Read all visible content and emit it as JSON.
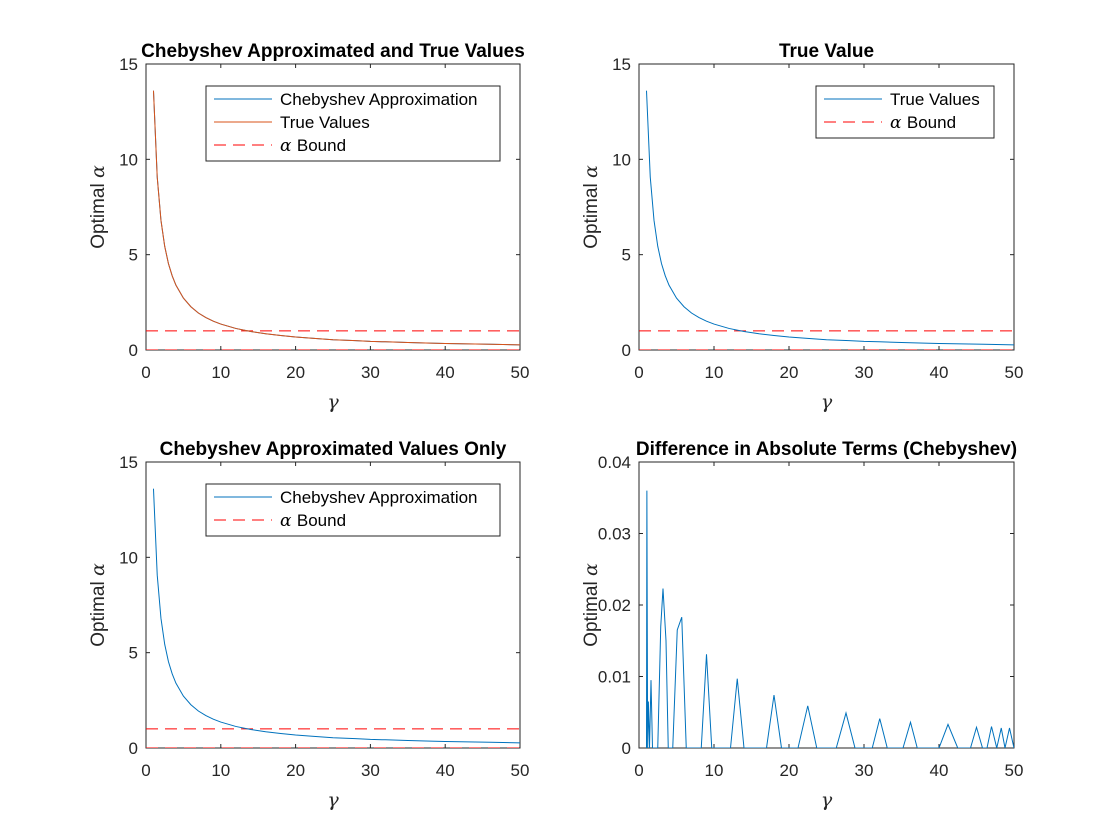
{
  "colors": {
    "blue": "#0072BD",
    "orange": "#D95319",
    "bound": "#FF0000",
    "axis": "#262626"
  },
  "chart_data": [
    {
      "type": "line",
      "title": "Chebyshev Approximated and True Values",
      "xlabel": "γ",
      "ylabel_prefix": "Optimal ",
      "ylabel_symbol": "α",
      "xlim": [
        0,
        50
      ],
      "ylim": [
        0,
        15
      ],
      "xticks": [
        0,
        10,
        20,
        30,
        40,
        50
      ],
      "yticks": [
        0,
        5,
        10,
        15
      ],
      "ytick_labels": [
        "0",
        "5",
        "10",
        "15"
      ],
      "legend_position": "top-right",
      "x": [
        1,
        1.5,
        2,
        2.5,
        3,
        3.5,
        4,
        5,
        6,
        7,
        8,
        9,
        10,
        12,
        14,
        16,
        18,
        20,
        22,
        25,
        28,
        30,
        32,
        35,
        38,
        40,
        43,
        46,
        50
      ],
      "series": [
        {
          "name": "Chebyshev Approximation",
          "style": "solid",
          "color": "#0072BD",
          "values": [
            13.6,
            9.07,
            6.8,
            5.44,
            4.53,
            3.89,
            3.4,
            2.72,
            2.27,
            1.94,
            1.7,
            1.51,
            1.36,
            1.13,
            0.97,
            0.85,
            0.76,
            0.68,
            0.62,
            0.54,
            0.49,
            0.45,
            0.43,
            0.39,
            0.36,
            0.34,
            0.32,
            0.3,
            0.27
          ]
        },
        {
          "name": "True Values",
          "style": "solid",
          "color": "#D95319",
          "values": [
            13.6,
            9.07,
            6.8,
            5.44,
            4.53,
            3.89,
            3.4,
            2.72,
            2.27,
            1.94,
            1.7,
            1.51,
            1.36,
            1.13,
            0.97,
            0.85,
            0.76,
            0.68,
            0.62,
            0.54,
            0.49,
            0.45,
            0.43,
            0.39,
            0.36,
            0.34,
            0.32,
            0.3,
            0.27
          ]
        }
      ],
      "bound": {
        "name": "Bound",
        "symbol": "α",
        "values": [
          0,
          1
        ],
        "color": "#FF0000",
        "style": "dashed"
      }
    },
    {
      "type": "line",
      "title": "True Value",
      "xlabel": "γ",
      "ylabel_prefix": "Optimal ",
      "ylabel_symbol": "α",
      "xlim": [
        0,
        50
      ],
      "ylim": [
        0,
        15
      ],
      "xticks": [
        0,
        10,
        20,
        30,
        40,
        50
      ],
      "yticks": [
        0,
        5,
        10,
        15
      ],
      "ytick_labels": [
        "0",
        "5",
        "10",
        "15"
      ],
      "legend_position": "top-right",
      "x": [
        1,
        1.5,
        2,
        2.5,
        3,
        3.5,
        4,
        5,
        6,
        7,
        8,
        9,
        10,
        12,
        14,
        16,
        18,
        20,
        22,
        25,
        28,
        30,
        32,
        35,
        38,
        40,
        43,
        46,
        50
      ],
      "series": [
        {
          "name": "True Values",
          "style": "solid",
          "color": "#0072BD",
          "values": [
            13.6,
            9.07,
            6.8,
            5.44,
            4.53,
            3.89,
            3.4,
            2.72,
            2.27,
            1.94,
            1.7,
            1.51,
            1.36,
            1.13,
            0.97,
            0.85,
            0.76,
            0.68,
            0.62,
            0.54,
            0.49,
            0.45,
            0.43,
            0.39,
            0.36,
            0.34,
            0.32,
            0.3,
            0.27
          ]
        }
      ],
      "bound": {
        "name": "Bound",
        "symbol": "α",
        "values": [
          0,
          1
        ],
        "color": "#FF0000",
        "style": "dashed"
      }
    },
    {
      "type": "line",
      "title": "Chebyshev Approximated Values Only",
      "xlabel": "γ",
      "ylabel_prefix": "Optimal ",
      "ylabel_symbol": "α",
      "xlim": [
        0,
        50
      ],
      "ylim": [
        0,
        15
      ],
      "xticks": [
        0,
        10,
        20,
        30,
        40,
        50
      ],
      "yticks": [
        0,
        5,
        10,
        15
      ],
      "ytick_labels": [
        "0",
        "5",
        "10",
        "15"
      ],
      "legend_position": "top-right",
      "x": [
        1,
        1.5,
        2,
        2.5,
        3,
        3.5,
        4,
        5,
        6,
        7,
        8,
        9,
        10,
        12,
        14,
        16,
        18,
        20,
        22,
        25,
        28,
        30,
        32,
        35,
        38,
        40,
        43,
        46,
        50
      ],
      "series": [
        {
          "name": "Chebyshev Approximation",
          "style": "solid",
          "color": "#0072BD",
          "values": [
            13.6,
            9.07,
            6.8,
            5.44,
            4.53,
            3.89,
            3.4,
            2.72,
            2.27,
            1.94,
            1.7,
            1.51,
            1.36,
            1.13,
            0.97,
            0.85,
            0.76,
            0.68,
            0.62,
            0.54,
            0.49,
            0.45,
            0.43,
            0.39,
            0.36,
            0.34,
            0.32,
            0.3,
            0.27
          ]
        }
      ],
      "bound": {
        "name": "Bound",
        "symbol": "α",
        "values": [
          0,
          1
        ],
        "color": "#FF0000",
        "style": "dashed"
      }
    },
    {
      "type": "line",
      "title": "Difference in Absolute Terms (Chebyshev)",
      "xlabel": "γ",
      "ylabel_prefix": "Optimal ",
      "ylabel_symbol": "α",
      "xlim": [
        0,
        50
      ],
      "ylim": [
        0,
        0.04
      ],
      "xticks": [
        0,
        10,
        20,
        30,
        40,
        50
      ],
      "yticks": [
        0,
        0.01,
        0.02,
        0.03,
        0.04
      ],
      "ytick_labels": [
        "0",
        "0.01",
        "0.02",
        "0.03",
        "0.04"
      ],
      "legend_position": "none",
      "x": [
        1,
        1.05,
        1.15,
        1.25,
        1.4,
        1.6,
        1.8,
        2.0,
        2.2,
        2.5,
        2.9,
        3.2,
        3.6,
        3.9,
        4.5,
        5.1,
        5.7,
        6.3,
        6.9,
        7.6,
        8.3,
        9.0,
        9.7,
        10.4,
        11.3,
        12.2,
        13.1,
        14.0,
        14.9,
        16.0,
        17.0,
        18.0,
        19.0,
        20.0,
        21.2,
        22.5,
        23.7,
        25.0,
        26.3,
        27.6,
        28.8,
        30.0,
        31.1,
        32.1,
        33.1,
        34.2,
        35.2,
        36.2,
        37.1,
        38.2,
        39.2,
        40.0,
        41.2,
        42.5,
        43.5,
        44.2,
        45.0,
        45.8,
        46.4,
        47.0,
        47.7,
        48.3,
        48.8,
        49.4,
        50.0
      ],
      "series": [
        {
          "name": "Difference",
          "style": "solid",
          "color": "#0072BD",
          "values": [
            0.0,
            0.036,
            0.0,
            0.0065,
            0.0,
            0.0095,
            0.0,
            0.0,
            0.0,
            0.0,
            0.017,
            0.0223,
            0.015,
            0.0,
            0.0,
            0.0165,
            0.0183,
            0.0,
            0.0,
            0.0,
            0.0,
            0.0131,
            0.0,
            0.0,
            0.0,
            0.0,
            0.0097,
            0.0,
            0.0,
            0.0,
            0.0,
            0.0074,
            0.0,
            0.0,
            0.0,
            0.0059,
            0.0,
            0.0,
            0.0,
            0.0049,
            0.0,
            0.0,
            0.0,
            0.0041,
            0.0,
            0.0,
            0.0,
            0.0036,
            0.0,
            0.0,
            0.0,
            0.0,
            0.0033,
            0.0,
            0.0,
            0.0,
            0.0029,
            0.0,
            0.0,
            0.003,
            0.0,
            0.0028,
            0.0,
            0.0028,
            0.0
          ]
        }
      ]
    }
  ]
}
